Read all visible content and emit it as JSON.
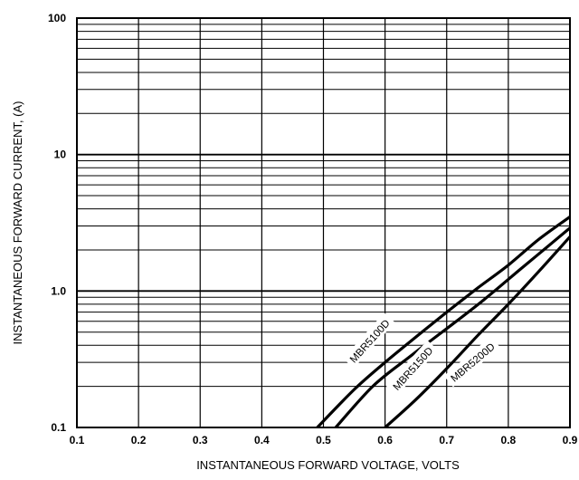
{
  "chart_data": {
    "type": "line",
    "xlabel": "INSTANTANEOUS FORWARD VOLTAGE, VOLTS",
    "ylabel": "INSTANTANEOUS  FORWARD CURRENT, (A)",
    "x_scale": "linear",
    "y_scale": "log",
    "xlim": [
      0.1,
      0.9
    ],
    "ylim": [
      0.1,
      100
    ],
    "x_ticks": [
      "0.1",
      "0.2",
      "0.3",
      "0.4",
      "0.5",
      "0.6",
      "0.7",
      "0.8",
      "0.9"
    ],
    "y_ticks": [
      {
        "value": 0.1,
        "label": "0.1"
      },
      {
        "value": 1,
        "label": "1.0"
      },
      {
        "value": 10,
        "label": "10"
      },
      {
        "value": 100,
        "label": "100"
      }
    ],
    "grid": true,
    "series": [
      {
        "name": "MBR5100D",
        "x": [
          0.49,
          0.55,
          0.6,
          0.65,
          0.7,
          0.75,
          0.8,
          0.85,
          0.9
        ],
        "y": [
          0.1,
          0.19,
          0.3,
          0.46,
          0.7,
          1.05,
          1.55,
          2.4,
          3.5
        ]
      },
      {
        "name": "MBR5150D",
        "x": [
          0.52,
          0.58,
          0.64,
          0.7,
          0.76,
          0.82,
          0.86,
          0.9
        ],
        "y": [
          0.1,
          0.2,
          0.33,
          0.53,
          0.86,
          1.45,
          2.05,
          2.9
        ]
      },
      {
        "name": "MBR5200D",
        "x": [
          0.6,
          0.65,
          0.7,
          0.75,
          0.8,
          0.85,
          0.9
        ],
        "y": [
          0.1,
          0.16,
          0.27,
          0.47,
          0.8,
          1.4,
          2.5
        ]
      }
    ],
    "series_labels": [
      {
        "text": "MBR5100D",
        "x": 0.575,
        "y": 0.43,
        "angle": -48
      },
      {
        "text": "MBR5150D",
        "x": 0.645,
        "y": 0.27,
        "angle": -48
      },
      {
        "text": "MBR5200D",
        "x": 0.742,
        "y": 0.3,
        "angle": -40
      }
    ]
  }
}
